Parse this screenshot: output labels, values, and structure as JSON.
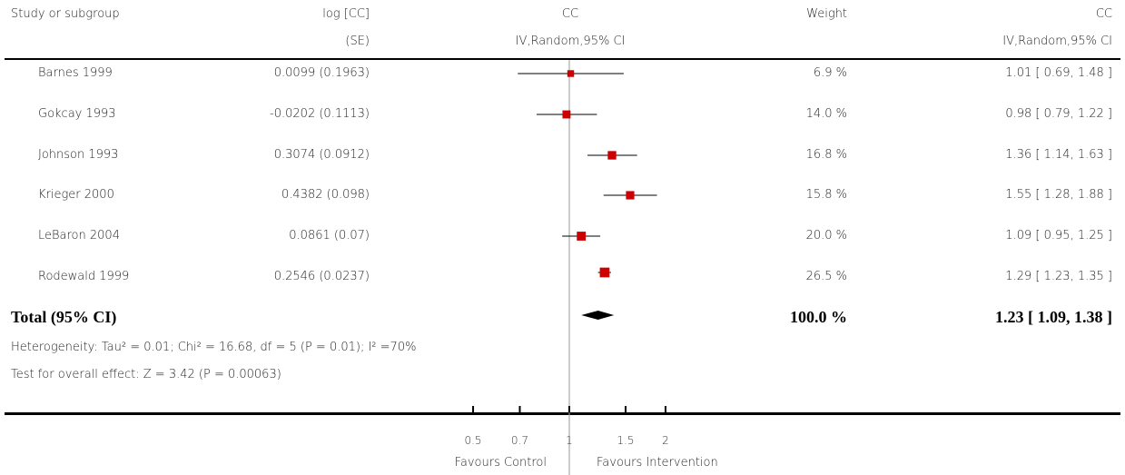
{
  "headers": {
    "study": "Study or subgroup",
    "logcc_1": "log [CC]",
    "logcc_2": "(SE)",
    "plot_1": "CC",
    "plot_2": "IV,Random,95% CI",
    "weight": "Weight",
    "cc_1": "CC",
    "cc_2": "IV,Random,95% CI"
  },
  "studies": [
    {
      "name": "Barnes 1999",
      "logcc_se": "0.0099 (0.1963)",
      "weight": "6.9 %",
      "ci_text": "1.01 [ 0.69, 1.48 ]"
    },
    {
      "name": "Gokcay 1993",
      "logcc_se": "-0.0202 (0.1113)",
      "weight": "14.0 %",
      "ci_text": "0.98 [ 0.79, 1.22 ]"
    },
    {
      "name": "Johnson 1993",
      "logcc_se": "0.3074 (0.0912)",
      "weight": "16.8 %",
      "ci_text": "1.36 [ 1.14, 1.63 ]"
    },
    {
      "name": "Krieger 2000",
      "logcc_se": "0.4382 (0.098)",
      "weight": "15.8 %",
      "ci_text": "1.55 [ 1.28, 1.88 ]"
    },
    {
      "name": "LeBaron 2004",
      "logcc_se": "0.0861 (0.07)",
      "weight": "20.0 %",
      "ci_text": "1.09 [ 0.95, 1.25 ]"
    },
    {
      "name": "Rodewald 1999",
      "logcc_se": "0.2546 (0.0237)",
      "weight": "26.5 %",
      "ci_text": "1.29 [ 1.23, 1.35 ]"
    }
  ],
  "total": {
    "label": "Total (95% CI)",
    "weight": "100.0 %",
    "ci_text": "1.23 [ 1.09, 1.38 ]"
  },
  "heterogeneity": "Heterogeneity: Tau² = 0.01; Chi² = 16.68, df = 5 (P = 0.01); I² =70%",
  "overall_effect": "Test for overall effect: Z = 3.42 (P = 0.00063)",
  "favours_left": "Favours Control",
  "favours_right": "Favours Intervention",
  "colors": {
    "marker": "#cc0000",
    "line": "#000000",
    "reference": "#999999"
  },
  "chart_data": {
    "type": "forest",
    "scale": "log",
    "x_ticks": [
      0.5,
      0.7,
      1,
      1.5,
      2
    ],
    "x_tick_labels": [
      "0.5",
      "0.7",
      "1",
      "1.5",
      "2"
    ],
    "xlim": [
      0.5,
      2
    ],
    "reference_line": 1,
    "studies": [
      {
        "name": "Barnes 1999",
        "estimate": 1.01,
        "lower": 0.69,
        "upper": 1.48,
        "weight": 6.9
      },
      {
        "name": "Gokcay 1993",
        "estimate": 0.98,
        "lower": 0.79,
        "upper": 1.22,
        "weight": 14.0
      },
      {
        "name": "Johnson 1993",
        "estimate": 1.36,
        "lower": 1.14,
        "upper": 1.63,
        "weight": 16.8
      },
      {
        "name": "Krieger 2000",
        "estimate": 1.55,
        "lower": 1.28,
        "upper": 1.88,
        "weight": 15.8
      },
      {
        "name": "LeBaron 2004",
        "estimate": 1.09,
        "lower": 0.95,
        "upper": 1.25,
        "weight": 20.0
      },
      {
        "name": "Rodewald 1999",
        "estimate": 1.29,
        "lower": 1.23,
        "upper": 1.35,
        "weight": 26.5
      }
    ],
    "total": {
      "name": "Total (95% CI)",
      "estimate": 1.23,
      "lower": 1.09,
      "upper": 1.38
    }
  }
}
